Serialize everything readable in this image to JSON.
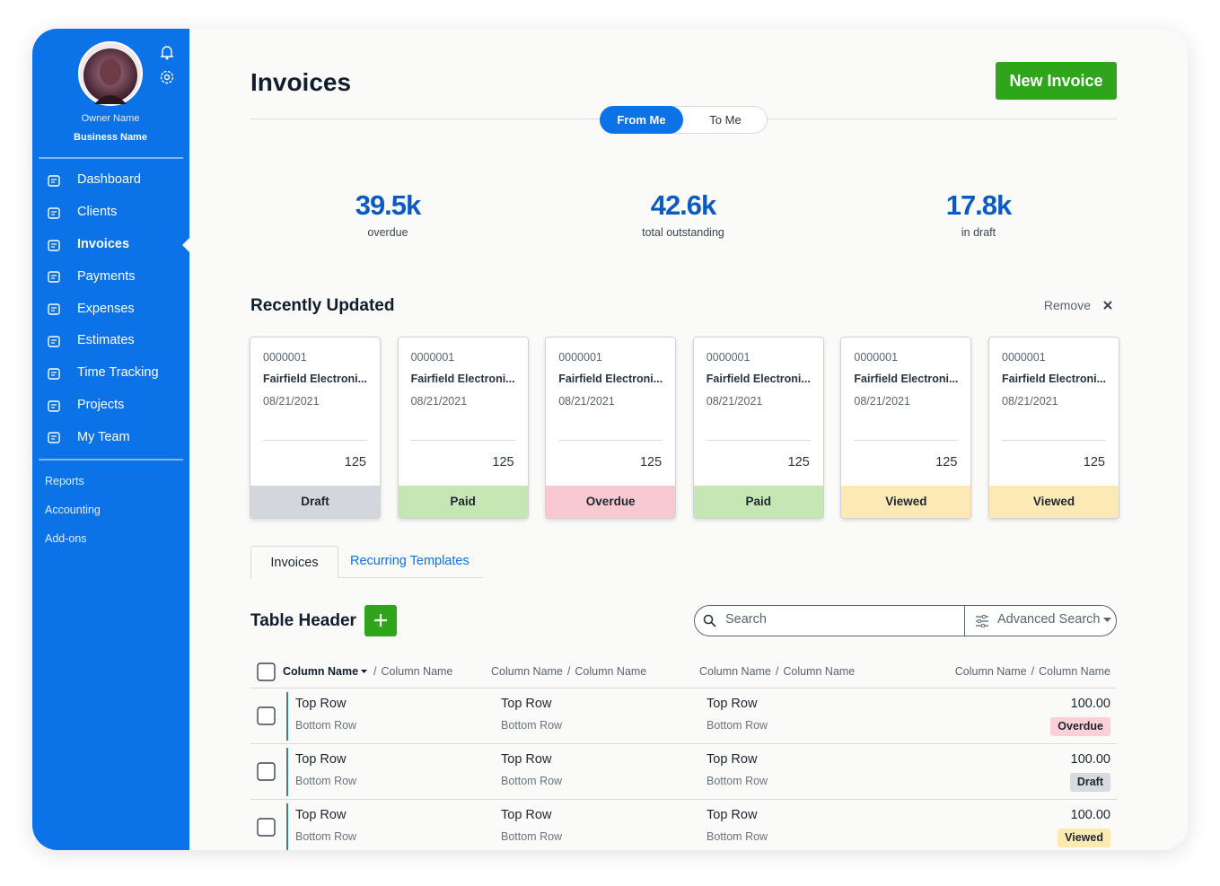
{
  "sidebar": {
    "owner_name": "Owner Name",
    "business_name": "Business Name",
    "menu": [
      "Dashboard",
      "Clients",
      "Invoices",
      "Payments",
      "Expenses",
      "Estimates",
      "Time Tracking",
      "Projects",
      "My Team"
    ],
    "links": [
      "Reports",
      "Accounting",
      "Add-ons"
    ]
  },
  "header": {
    "title": "Invoices",
    "button": "New Invoice",
    "toggle": [
      "From Me",
      "To Me"
    ]
  },
  "summary": [
    {
      "value": "39.5k",
      "label": "overdue"
    },
    {
      "value": "42.6k",
      "label": "total outstanding"
    },
    {
      "value": "17.8k",
      "label": "in draft"
    }
  ],
  "recent": {
    "title": "Recently Updated",
    "action": "Remove",
    "cards": [
      {
        "number": "0000001",
        "client": "Fairfield Electroni...",
        "date": "08/21/2021",
        "amount": 125,
        "status": "Draft",
        "color": "#d3d6dc"
      },
      {
        "number": "0000001",
        "client": "Fairfield Electroni...",
        "date": "08/21/2021",
        "amount": 125,
        "status": "Paid",
        "color": "#c6e6b3"
      },
      {
        "number": "0000001",
        "client": "Fairfield Electroni...",
        "date": "08/21/2021",
        "amount": 125,
        "status": "Overdue",
        "color": "#f9c9d1"
      },
      {
        "number": "0000001",
        "client": "Fairfield Electroni...",
        "date": "08/21/2021",
        "amount": 125,
        "status": "Paid",
        "color": "#c6e6b3"
      },
      {
        "number": "0000001",
        "client": "Fairfield Electroni...",
        "date": "08/21/2021",
        "amount": 125,
        "status": "Viewed",
        "color": "#fde9b6"
      },
      {
        "number": "0000001",
        "client": "Fairfield Electroni...",
        "date": "08/21/2021",
        "amount": 125,
        "status": "Viewed",
        "color": "#fde9b6"
      }
    ]
  },
  "tabs": [
    "Invoices",
    "Recurring Templates"
  ],
  "table": {
    "title": "Table Header",
    "search": "Search",
    "advanced_search": "Advanced Search",
    "separator": "/",
    "columns": [
      [
        "Column Name",
        "Column Name"
      ],
      [
        "Column Name",
        "Column Name"
      ],
      [
        "Column Name",
        "Column Name"
      ],
      [
        "Column Name",
        "Column Name"
      ]
    ],
    "rows": [
      {
        "cells": [
          [
            "Top Row",
            "Bottom Row"
          ],
          [
            "Top Row",
            "Bottom Row"
          ],
          [
            "Top Row",
            "Bottom Row"
          ]
        ],
        "amount": "100.00",
        "status": "Overdue",
        "status_color": "#fbd0d7"
      },
      {
        "cells": [
          [
            "Top Row",
            "Bottom Row"
          ],
          [
            "Top Row",
            "Bottom Row"
          ],
          [
            "Top Row",
            "Bottom Row"
          ]
        ],
        "amount": "100.00",
        "status": "Draft",
        "status_color": "#d7dbe0"
      },
      {
        "cells": [
          [
            "Top Row",
            "Bottom Row"
          ],
          [
            "Top Row",
            "Bottom Row"
          ],
          [
            "Top Row",
            "Bottom Row"
          ]
        ],
        "amount": "100.00",
        "status": "Viewed",
        "status_color": "#fdeab2"
      }
    ]
  }
}
